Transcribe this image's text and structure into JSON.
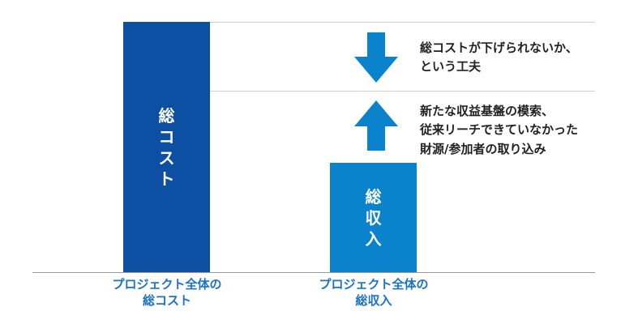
{
  "colors": {
    "total_cost_bar": "#0d4fa3",
    "total_income_bar": "#0b82cc",
    "arrow": "#0b82cc",
    "label_text": "#1a73c8",
    "note_text": "#222222"
  },
  "bars": {
    "total_cost": {
      "text": "総コスト"
    },
    "total_income": {
      "text": "総収入"
    }
  },
  "labels": {
    "project_total_cost": "プロジェクト全体の\n総コスト",
    "project_total_income": "プロジェクト全体の\n総収入"
  },
  "notes": {
    "down": "総コストが下げられないか、\nという工夫",
    "up": "新たな収益基盤の模索、\n従来リーチできていなかった\n財源/参加者の取り込み"
  },
  "icons": {
    "down": "arrow-down-icon",
    "up": "arrow-up-icon"
  }
}
